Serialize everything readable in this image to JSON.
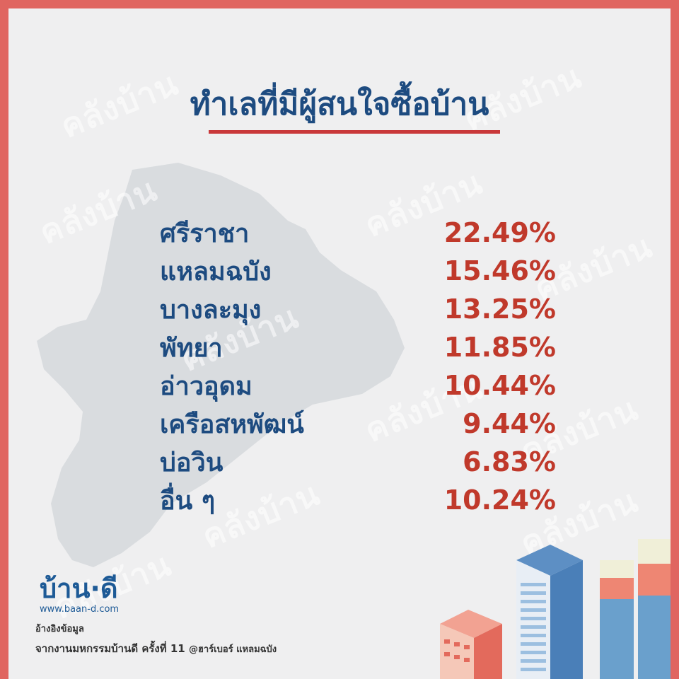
{
  "title": "ทำเลที่มีผู้สนใจซื้อบ้าน",
  "rows": [
    {
      "name": "ศรีราชา",
      "pct": "22.49%"
    },
    {
      "name": "แหลมฉบัง",
      "pct": "15.46%"
    },
    {
      "name": "บางละมุง",
      "pct": "13.25%"
    },
    {
      "name": "พัทยา",
      "pct": "11.85%"
    },
    {
      "name": "อ่าวอุดม",
      "pct": "10.44%"
    },
    {
      "name": "เครือสหพัฒน์",
      "pct": "9.44%"
    },
    {
      "name": "บ่อวิน",
      "pct": "6.83%"
    },
    {
      "name": "อื่น ๆ",
      "pct": "10.24%"
    }
  ],
  "logo": {
    "name": "บ้าน·ดี",
    "url": "www.baan-d.com"
  },
  "source": {
    "label": "อ้างอิงข้อมูล",
    "text": "จากงานมหกรรมบ้านดี ครั้งที่ 11",
    "location": "@ฮาร์เบอร์ แหลมฉบัง"
  },
  "watermark": "คลังบ้าน",
  "colors": {
    "frame": "#e06560",
    "background": "#efeff0",
    "title": "#1d4b80",
    "accent": "#c9383a",
    "map": "#d9dcdf"
  }
}
